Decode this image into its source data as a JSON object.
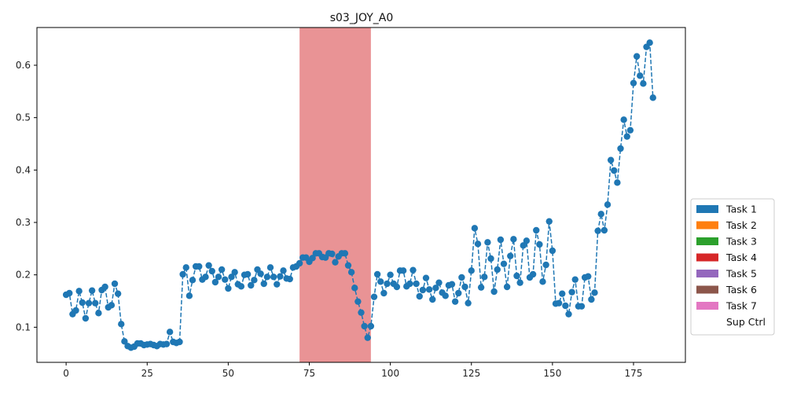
{
  "chart_data": {
    "type": "line",
    "title": "s03_JOY_A0",
    "xlabel": "",
    "ylabel": "",
    "xlim": [
      -9,
      191
    ],
    "ylim": [
      0.033,
      0.672
    ],
    "x_ticks": [
      0,
      25,
      50,
      75,
      100,
      125,
      150,
      175
    ],
    "y_ticks": [
      0.1,
      0.2,
      0.3,
      0.4,
      0.5,
      0.6
    ],
    "y_tick_labels": [
      "0.1",
      "0.2",
      "0.3",
      "0.4",
      "0.5",
      "0.6"
    ],
    "grid": false,
    "legend_position": "center-right-outside",
    "series": [
      {
        "color": "#1f77b4",
        "line_style": "dashed",
        "marker": "circle",
        "x_start": 0,
        "x_step": 1,
        "values": [
          0.162,
          0.165,
          0.125,
          0.132,
          0.169,
          0.147,
          0.117,
          0.146,
          0.17,
          0.146,
          0.127,
          0.171,
          0.177,
          0.138,
          0.142,
          0.183,
          0.164,
          0.106,
          0.073,
          0.064,
          0.061,
          0.063,
          0.069,
          0.069,
          0.066,
          0.067,
          0.068,
          0.066,
          0.064,
          0.068,
          0.067,
          0.068,
          0.091,
          0.072,
          0.07,
          0.072,
          0.201,
          0.214,
          0.16,
          0.19,
          0.216,
          0.216,
          0.191,
          0.196,
          0.218,
          0.207,
          0.186,
          0.196,
          0.21,
          0.191,
          0.174,
          0.196,
          0.205,
          0.182,
          0.178,
          0.2,
          0.201,
          0.18,
          0.19,
          0.21,
          0.202,
          0.183,
          0.196,
          0.214,
          0.196,
          0.182,
          0.197,
          0.208,
          0.193,
          0.192,
          0.214,
          0.216,
          0.222,
          0.233,
          0.233,
          0.225,
          0.232,
          0.241,
          0.241,
          0.234,
          0.233,
          0.241,
          0.24,
          0.224,
          0.235,
          0.241,
          0.241,
          0.218,
          0.205,
          0.175,
          0.149,
          0.128,
          0.102,
          0.08,
          0.102,
          0.158,
          0.201,
          0.187,
          0.165,
          0.183,
          0.2,
          0.183,
          0.177,
          0.208,
          0.208,
          0.178,
          0.183,
          0.209,
          0.183,
          0.159,
          0.171,
          0.194,
          0.172,
          0.153,
          0.175,
          0.185,
          0.166,
          0.16,
          0.18,
          0.182,
          0.149,
          0.165,
          0.195,
          0.177,
          0.146,
          0.208,
          0.289,
          0.259,
          0.176,
          0.196,
          0.262,
          0.231,
          0.168,
          0.21,
          0.267,
          0.221,
          0.177,
          0.236,
          0.268,
          0.198,
          0.185,
          0.256,
          0.265,
          0.195,
          0.201,
          0.285,
          0.258,
          0.187,
          0.219,
          0.302,
          0.246,
          0.145,
          0.146,
          0.164,
          0.141,
          0.125,
          0.167,
          0.191,
          0.14,
          0.14,
          0.195,
          0.197,
          0.153,
          0.166,
          0.284,
          0.316,
          0.285,
          0.334,
          0.419,
          0.399,
          0.376,
          0.441,
          0.496,
          0.464,
          0.476,
          0.566,
          0.617,
          0.58,
          0.565,
          0.635,
          0.643,
          0.538
        ]
      }
    ],
    "shaded_regions": [
      {
        "x_start": 72,
        "x_end": 94,
        "color": "#e99395"
      }
    ]
  },
  "legend": {
    "items": [
      {
        "label": "Task 1",
        "color": "#1f77b4"
      },
      {
        "label": "Task 2",
        "color": "#ff7f0e"
      },
      {
        "label": "Task 3",
        "color": "#2ca02c"
      },
      {
        "label": "Task 4",
        "color": "#d62728"
      },
      {
        "label": "Task 5",
        "color": "#9467bd"
      },
      {
        "label": "Task 6",
        "color": "#8c564b"
      },
      {
        "label": "Task 7",
        "color": "#e377c2"
      },
      {
        "label": "Sup Ctrl",
        "color": "#ffffff"
      }
    ]
  }
}
